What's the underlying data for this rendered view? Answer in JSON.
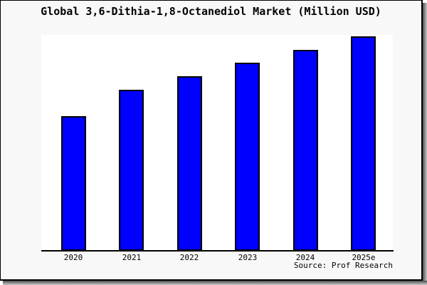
{
  "page": {
    "background": "#f8f8f8",
    "border_color": "#000000",
    "plot_background": "#ffffff"
  },
  "title": "Global 3,6-Dithia-1,8-Octanediol Market (Million USD)",
  "source_note": "Source: Prof Research",
  "colors": {
    "bar_fill": "#0000ff",
    "bar_border": "#000000",
    "axis": "#000000",
    "title_text": "#000000"
  },
  "chart_data": {
    "type": "bar",
    "title": "Global 3,6-Dithia-1,8-Octanediol Market (Million USD)",
    "categories": [
      "2020",
      "2021",
      "2022",
      "2023",
      "2024",
      "2025e"
    ],
    "values": [
      62.8,
      75.1,
      81.4,
      87.7,
      93.7,
      100
    ],
    "value_note": "no y-axis shown in chart; values estimated from bar heights relative to 2025e = 100",
    "xlabel": "",
    "ylabel": "",
    "ylim": [
      0,
      100.7
    ],
    "grid": false,
    "legend": false,
    "bar_color": "#0000ff",
    "annotations": [
      "Source: Prof Research"
    ]
  }
}
